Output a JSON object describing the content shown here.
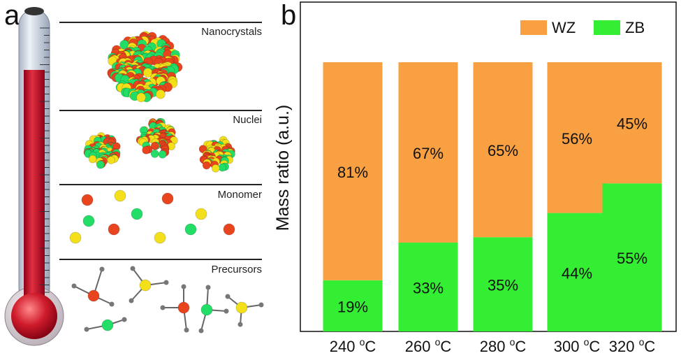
{
  "panel_a": {
    "label": "a",
    "stages": [
      {
        "name": "Nanocrystals"
      },
      {
        "name": "Nuclei"
      },
      {
        "name": "Monomer"
      },
      {
        "name": "Precursors"
      }
    ],
    "colors": {
      "red": "#e8441e",
      "yellow": "#f3e01a",
      "green": "#22dd66",
      "grey": "#888888",
      "thermo_red": "#c8102e"
    }
  },
  "panel_b": {
    "label": "b"
  },
  "chart_data": {
    "type": "bar",
    "stacked": true,
    "categories": [
      "240 °C",
      "260 °C",
      "280 °C",
      "300 °C",
      "320 °C"
    ],
    "tick_labels": [
      "240 ",
      "260 ",
      "280 ",
      "300 ",
      "320 "
    ],
    "unit_sup": "o",
    "unit_letter": "C",
    "series": [
      {
        "name": "ZB",
        "color": "#33ee33",
        "values": [
          19,
          33,
          35,
          44,
          55
        ],
        "labels": [
          "19%",
          "33%",
          "35%",
          "44%",
          "55%"
        ]
      },
      {
        "name": "WZ",
        "color": "#f9a043",
        "values": [
          81,
          67,
          65,
          56,
          45
        ],
        "labels": [
          "81%",
          "67%",
          "65%",
          "56%",
          "45%"
        ]
      }
    ],
    "legend": [
      {
        "name": "WZ",
        "color": "#f9a043"
      },
      {
        "name": "ZB",
        "color": "#33ee33"
      }
    ],
    "xlabel": "",
    "ylabel": "Mass ratio (a.u.)",
    "ylim": [
      0,
      100
    ],
    "legend_position": "top-right"
  }
}
